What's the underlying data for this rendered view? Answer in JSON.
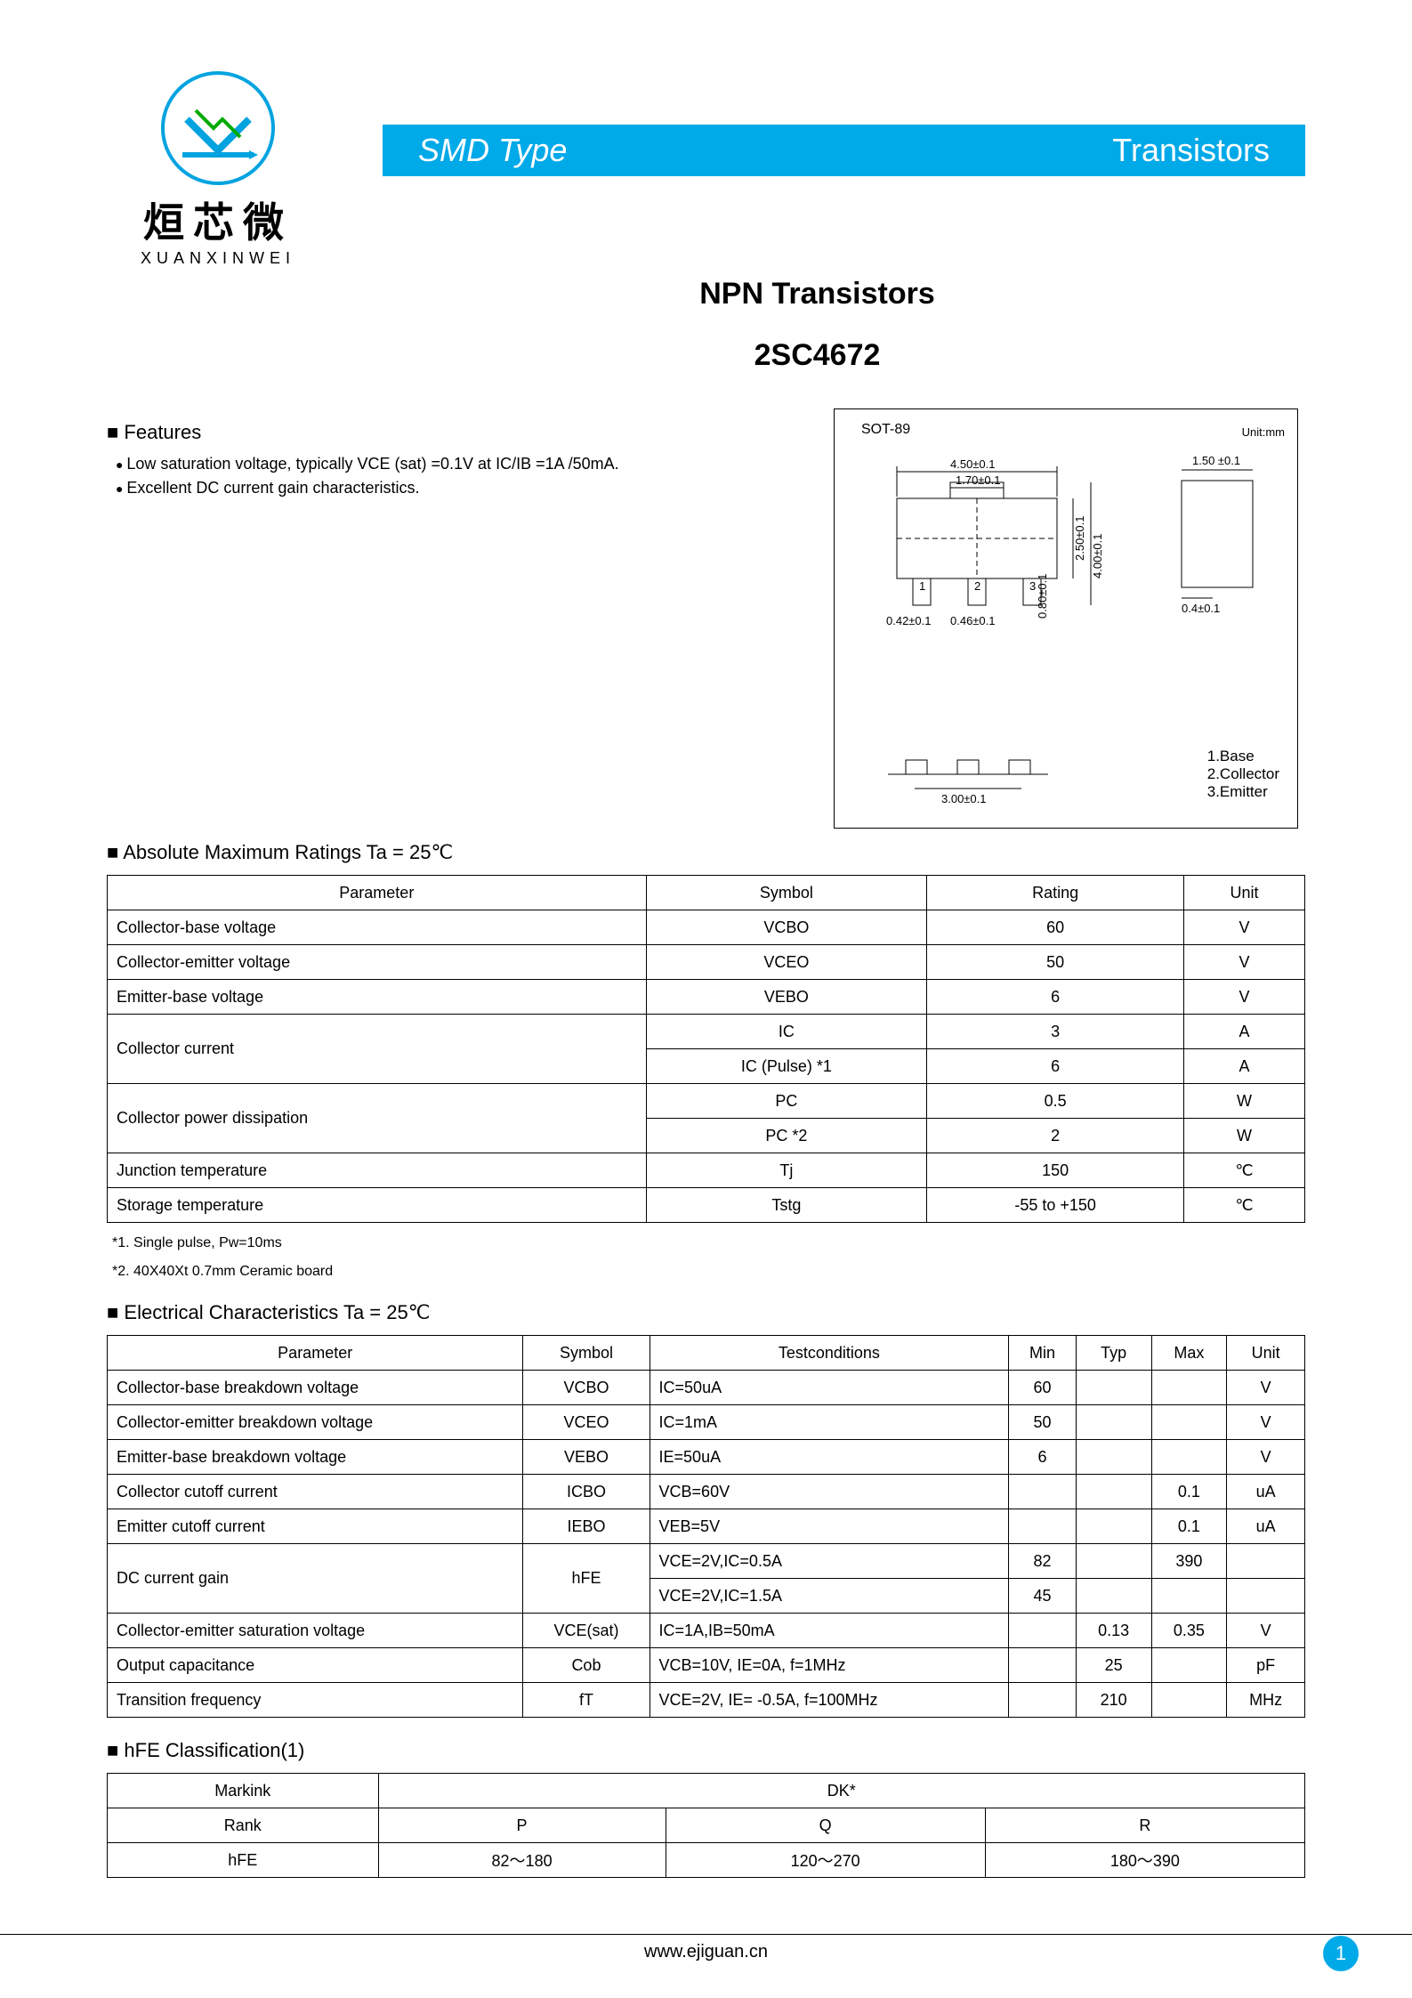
{
  "brand": {
    "cn": "烜芯微",
    "en": "XUANXINWEI"
  },
  "banner": {
    "left": "SMD Type",
    "right": "Transistors"
  },
  "title": {
    "line1": "NPN    Transistors",
    "line2": "2SC4672"
  },
  "features": {
    "heading": "Features",
    "items": [
      "Low saturation voltage, typically VCE (sat) =0.1V at IC/IB =1A /50mA.",
      "Excellent DC current gain characteristics."
    ]
  },
  "package": {
    "name": "SOT-89",
    "unit": "Unit:mm",
    "dims": {
      "w": "4.50±0.1",
      "tab_w": "1.70±0.1",
      "h": "2.50±0.1",
      "h_total": "4.00±0.1",
      "lead_w": "0.42±0.1",
      "lead_sp": "0.46±0.1",
      "lead_h": "0.80±0.1",
      "foot_span": "3.00±0.1",
      "side_w": "1.50 ±0.1",
      "side_lead": "0.4±0.1"
    },
    "pins": [
      "1.Base",
      "2.Collector",
      "3.Emitter"
    ]
  },
  "amr": {
    "heading": "Absolute Maximum Ratings Ta = 25℃",
    "columns": [
      "Parameter",
      "Symbol",
      "Rating",
      "Unit"
    ],
    "rows": [
      {
        "param": "Collector-base  voltage",
        "sym": "VCBO",
        "rating": "60",
        "unit": "V"
      },
      {
        "param": "Collector-emitter  voltage",
        "sym": "VCEO",
        "rating": "50",
        "unit": "V"
      },
      {
        "param": "Emitter-base voltage",
        "sym": "VEBO",
        "rating": "6",
        "unit": "V"
      }
    ],
    "collector_current": {
      "param": "Collector current",
      "r1": {
        "sym": "IC",
        "rating": "3",
        "unit": "A"
      },
      "r2": {
        "sym": "IC (Pulse) *1",
        "rating": "6",
        "unit": "A"
      }
    },
    "collector_power": {
      "param": "Collector power dissipation",
      "r1": {
        "sym": "PC",
        "rating": "0.5",
        "unit": "W"
      },
      "r2": {
        "sym": "PC  *2",
        "rating": "2",
        "unit": "W"
      }
    },
    "tail": [
      {
        "param": "Junction temperature",
        "sym": "Tj",
        "rating": "150",
        "unit": "℃"
      },
      {
        "param": "Storage temperature",
        "sym": "Tstg",
        "rating": "-55 to +150",
        "unit": "℃"
      }
    ],
    "notes": [
      "*1. Single pulse, Pw=10ms",
      "*2. 40X40Xt 0.7mm Ceramic board"
    ]
  },
  "ec": {
    "heading": "Electrical Characteristics Ta = 25℃",
    "columns": [
      "Parameter",
      "Symbol",
      "Testconditions",
      "Min",
      "Typ",
      "Max",
      "Unit"
    ],
    "rows_simple": [
      {
        "param": "Collector-base breakdown voltage",
        "sym": "VCBO",
        "cond": "IC=50uA",
        "min": "60",
        "typ": "",
        "max": "",
        "unit": "V"
      },
      {
        "param": "Collector-emitter breakdown voltage",
        "sym": "VCEO",
        "cond": "IC=1mA",
        "min": "50",
        "typ": "",
        "max": "",
        "unit": "V"
      },
      {
        "param": "Emitter-base breakdown voltage",
        "sym": "VEBO",
        "cond": "IE=50uA",
        "min": "6",
        "typ": "",
        "max": "",
        "unit": "V"
      },
      {
        "param": "Collector cutoff current",
        "sym": "ICBO",
        "cond": "VCB=60V",
        "min": "",
        "typ": "",
        "max": "0.1",
        "unit": "uA"
      },
      {
        "param": "Emitter cutoff current",
        "sym": "IEBO",
        "cond": "VEB=5V",
        "min": "",
        "typ": "",
        "max": "0.1",
        "unit": "uA"
      }
    ],
    "dc_gain": {
      "param": "DC current gain",
      "sym": "hFE",
      "r1": {
        "cond": "VCE=2V,IC=0.5A",
        "min": "82",
        "typ": "",
        "max": "390",
        "unit": ""
      },
      "r2": {
        "cond": "VCE=2V,IC=1.5A",
        "min": "45",
        "typ": "",
        "max": "",
        "unit": ""
      }
    },
    "rows_tail": [
      {
        "param": "Collector-emitter saturation voltage",
        "sym": "VCE(sat)",
        "cond": "IC=1A,IB=50mA",
        "min": "",
        "typ": "0.13",
        "max": "0.35",
        "unit": "V"
      },
      {
        "param": "Output capacitance",
        "sym": "Cob",
        "cond": "VCB=10V, IE=0A, f=1MHz",
        "min": "",
        "typ": "25",
        "max": "",
        "unit": "pF"
      },
      {
        "param": "Transition frequency",
        "sym": "fT",
        "cond": "VCE=2V, IE= -0.5A, f=100MHz",
        "min": "",
        "typ": "210",
        "max": "",
        "unit": "MHz"
      }
    ]
  },
  "hfe": {
    "heading": "hFE Classification(1)",
    "rows": [
      {
        "label": "Markink",
        "colspan_val": "DK*"
      },
      {
        "label": "Rank",
        "vals": [
          "P",
          "Q",
          "R"
        ]
      },
      {
        "label": "hFE",
        "vals": [
          "82～180",
          "120～270",
          "180～390"
        ]
      }
    ]
  },
  "footer": {
    "url": "www.ejiguan.cn",
    "page": "1"
  },
  "colors": {
    "accent": "#00a9e8"
  }
}
